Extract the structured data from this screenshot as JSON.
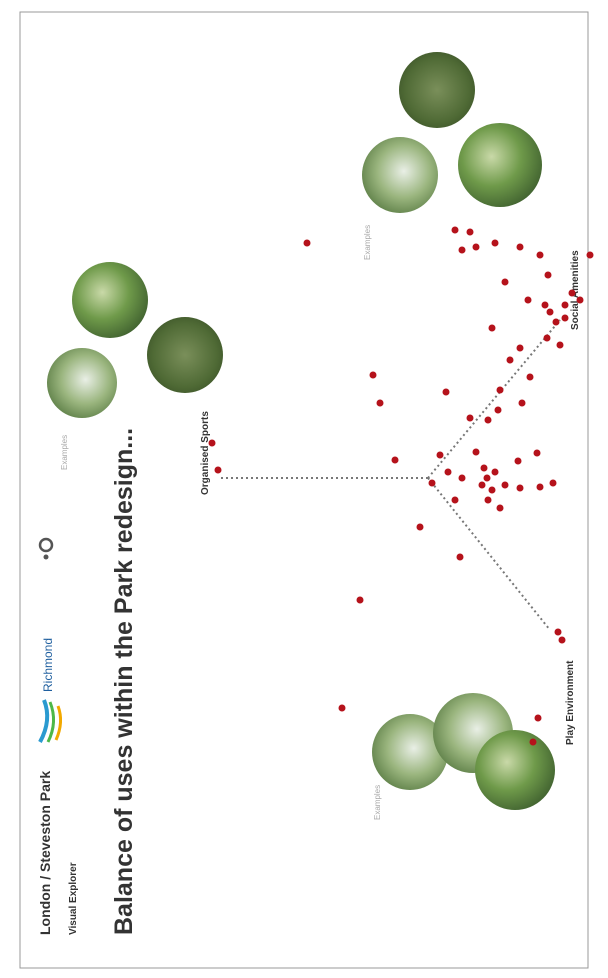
{
  "header": {
    "title": "London / Steveston Park",
    "subtitle": "Visual Explorer"
  },
  "headline": "Balance of uses within the Park redesign...",
  "logo": {
    "text": "Richmond"
  },
  "diagram": {
    "labels": {
      "top": "Organised Sports",
      "left": "Play Environment",
      "right": "Social Amenities"
    },
    "examples": [
      "Examples",
      "Examples",
      "Examples"
    ]
  }
}
